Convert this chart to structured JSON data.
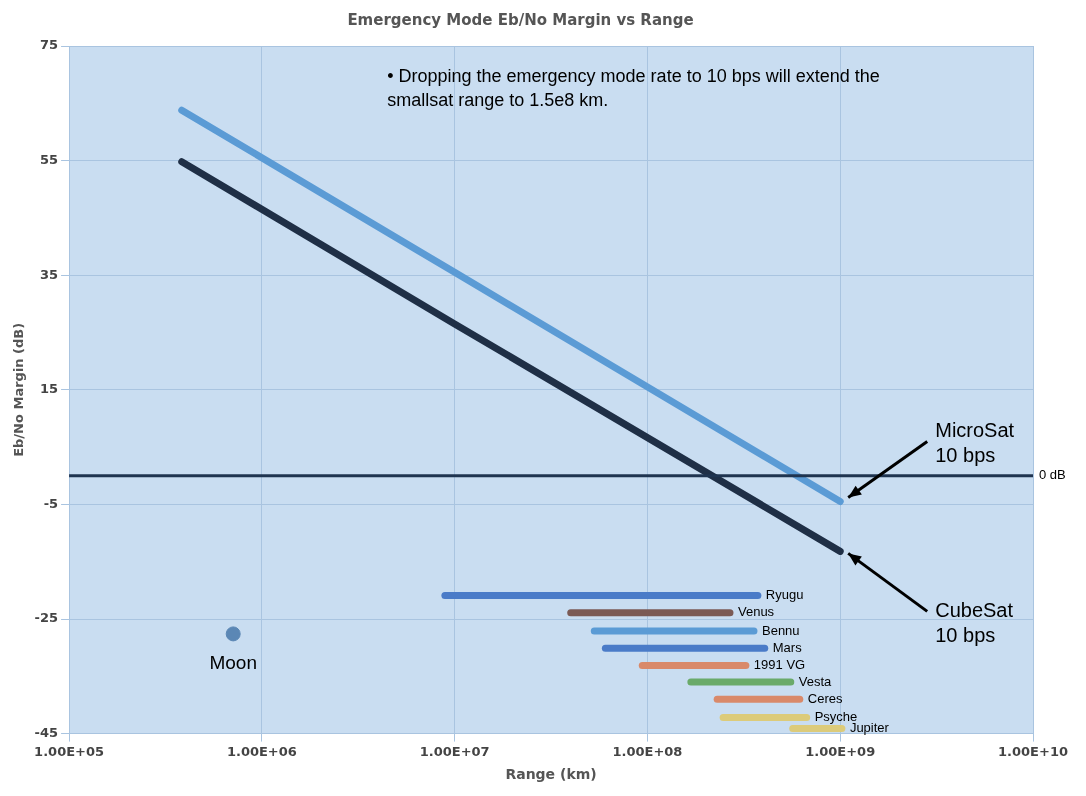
{
  "chart_data": {
    "type": "line",
    "title": "Emergency Mode Eb/No Margin vs Range",
    "xlabel": "Range (km)",
    "ylabel": "Eb/No Margin (dB)",
    "log": "x",
    "grid": true,
    "legend": false,
    "marker": "none",
    "line_style": "solid",
    "xlim": [
      100000,
      10000000000
    ],
    "xticks": [
      {
        "value": 100000,
        "label": "1.00E+05"
      },
      {
        "value": 1000000,
        "label": "1.00E+06"
      },
      {
        "value": 10000000,
        "label": "1.00E+07"
      },
      {
        "value": 100000000,
        "label": "1.00E+08"
      },
      {
        "value": 1000000000,
        "label": "1.00E+09"
      },
      {
        "value": 10000000000,
        "label": "1.00E+10"
      }
    ],
    "ylim": [
      -45,
      75
    ],
    "yticks": [
      -45,
      -25,
      -5,
      15,
      35,
      55,
      75
    ],
    "ref_lines": [
      {
        "axis": "y",
        "value": 0,
        "label": "0 dB",
        "color": "#1f3450"
      }
    ],
    "annotations": [
      "• Dropping the emergency mode rate to 10 bps will extend the smallsat range to 1.5e8 km."
    ],
    "series": [
      {
        "name": "MicroSat\n10 bps",
        "color": "#5b9bd5",
        "x": [
          384000,
          10000000,
          1000000000
        ],
        "values": [
          63.8,
          35.5,
          -4.5
        ]
      },
      {
        "name": "CubeSat\n10 bps",
        "color": "#1f2f46",
        "x": [
          384000,
          10000000,
          1000000000
        ],
        "values": [
          54.8,
          26.5,
          -13.2
        ]
      },
      {
        "name": "Moon",
        "type": "scatter",
        "marker": "circle",
        "color": "#5b87b5",
        "x": [
          710000
        ],
        "values": [
          -27.6
        ]
      },
      {
        "name": "Ryugu",
        "color": "#4a7bc8",
        "x": [
          8900000,
          374000000
        ],
        "values": [
          -20.9,
          -20.9
        ]
      },
      {
        "name": "Venus",
        "color": "#7b5a55",
        "x": [
          40000000,
          268000000
        ],
        "values": [
          -23.9,
          -23.9
        ]
      },
      {
        "name": "Bennu",
        "color": "#5b9bd5",
        "x": [
          53000000,
          357000000
        ],
        "values": [
          -27.1,
          -27.1
        ]
      },
      {
        "name": "Mars",
        "color": "#4a7bc8",
        "x": [
          60500000,
          406000000
        ],
        "values": [
          -30.1,
          -30.1
        ]
      },
      {
        "name": "1991 VG",
        "color": "#d9896a",
        "x": [
          94000000,
          324000000
        ],
        "values": [
          -33.1,
          -33.1
        ]
      },
      {
        "name": "Vesta",
        "color": "#6aaa6a",
        "x": [
          168000000,
          554000000
        ],
        "values": [
          -36.0,
          -36.0
        ]
      },
      {
        "name": "Ceres",
        "color": "#d9896a",
        "x": [
          230000000,
          617000000
        ],
        "values": [
          -39.0,
          -39.0
        ]
      },
      {
        "name": "Psyche",
        "color": "#dccb7a",
        "x": [
          247000000,
          670000000
        ],
        "values": [
          -42.2,
          -42.2
        ]
      },
      {
        "name": "Jupiter",
        "color": "#dccb7a",
        "x": [
          567000000,
          1020000000
        ],
        "values": [
          -44.1,
          -44.1
        ]
      }
    ]
  }
}
